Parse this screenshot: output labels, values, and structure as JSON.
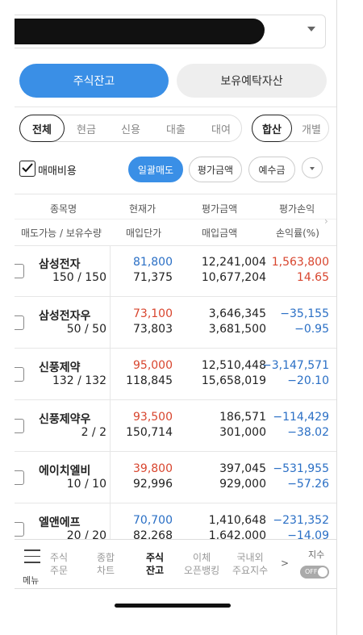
{
  "top_toggle": {
    "active": "주식잔고",
    "inactive": "보유예탁자산"
  },
  "filters": {
    "type_chips": [
      "전체",
      "현금",
      "신용",
      "대출",
      "대여"
    ],
    "view_chips": [
      "합산",
      "개별"
    ]
  },
  "options": {
    "fee_label": "매매비용",
    "fee_checked": true,
    "buttons": [
      "일괄매도",
      "평가금액",
      "예수금"
    ]
  },
  "table": {
    "header_row1": [
      "종목명",
      "현재가",
      "평가금액",
      "평가손익"
    ],
    "header_row2": [
      "매도가능 / 보유수량",
      "매입단가",
      "매입금액",
      "손익률(%)"
    ],
    "rows": [
      {
        "name": "삼성전자",
        "qty": "150 / 150",
        "price": "81,800",
        "avg": "71,375",
        "eval": "12,241,004",
        "buy": "10,677,204",
        "pl": "1,563,800",
        "rate": "14.65",
        "price_color": "blue",
        "pl_color": "red"
      },
      {
        "name": "삼성전자우",
        "qty": "50 / 50",
        "price": "73,100",
        "avg": "73,803",
        "eval": "3,646,345",
        "buy": "3,681,500",
        "pl": "−35,155",
        "rate": "−0.95",
        "price_color": "red",
        "pl_color": "blue"
      },
      {
        "name": "신풍제약",
        "qty": "132 / 132",
        "price": "95,000",
        "avg": "118,845",
        "eval": "12,510,448",
        "buy": "15,658,019",
        "pl": "−3,147,571",
        "rate": "−20.10",
        "price_color": "red",
        "pl_color": "blue"
      },
      {
        "name": "신풍제약우",
        "qty": "2 / 2",
        "price": "93,500",
        "avg": "150,714",
        "eval": "186,571",
        "buy": "301,000",
        "pl": "−114,429",
        "rate": "−38.02",
        "price_color": "red",
        "pl_color": "blue"
      },
      {
        "name": "에이치엘비",
        "qty": "10 / 10",
        "price": "39,800",
        "avg": "92,996",
        "eval": "397,045",
        "buy": "929,000",
        "pl": "−531,955",
        "rate": "−57.26",
        "price_color": "red",
        "pl_color": "blue"
      },
      {
        "name": "엘앤에프",
        "qty": "20 / 20",
        "price": "70,700",
        "avg": "82,268",
        "eval": "1,410,648",
        "buy": "1,642,000",
        "pl": "−231,352",
        "rate": "−14.09",
        "price_color": "blue",
        "pl_color": "blue"
      }
    ]
  },
  "bottom_nav": {
    "menu_label": "메뉴",
    "items": [
      {
        "line1": "주식",
        "line2": "주문",
        "active": false
      },
      {
        "line1": "종합",
        "line2": "차트",
        "active": false
      },
      {
        "line1": "주식",
        "line2": "잔고",
        "active": true
      },
      {
        "line1": "이체",
        "line2": "오픈뱅킹",
        "active": false
      },
      {
        "line1": "국내외",
        "line2": "주요지수",
        "active": false
      }
    ],
    "more": ">",
    "index_label": "지수",
    "toggle_label": "OFF"
  },
  "colors": {
    "accent": "#3a8fe6",
    "up": "#d8452e",
    "down": "#2a6fc5"
  }
}
